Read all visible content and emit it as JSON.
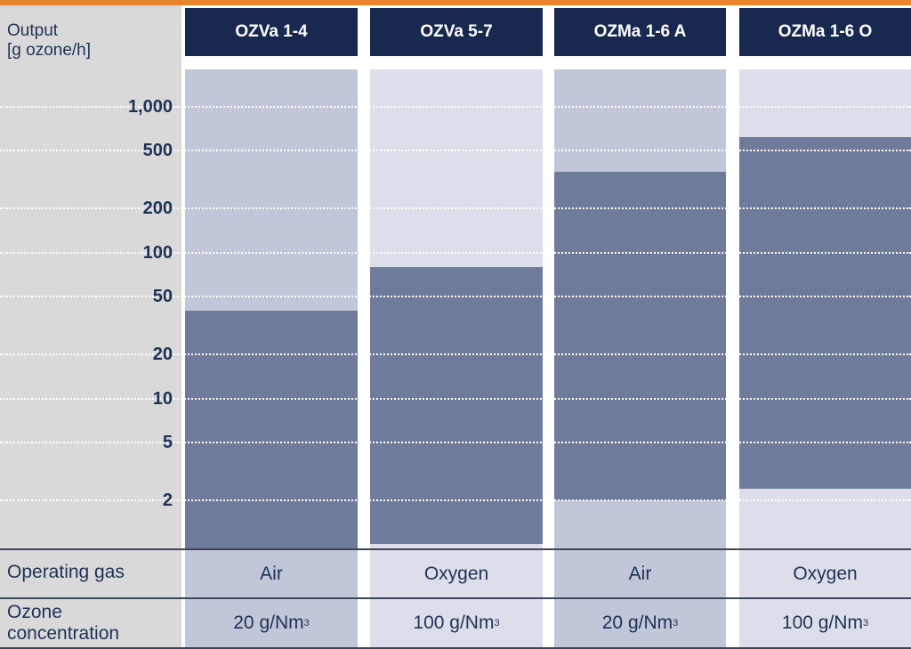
{
  "chart_data": {
    "type": "range-bar",
    "y_axis": {
      "title_line1": "Output",
      "title_line2": "[g ozone/h]",
      "scale": "log",
      "ticks": [
        {
          "value": 1000,
          "label": "1,000"
        },
        {
          "value": 500,
          "label": "500"
        },
        {
          "value": 200,
          "label": "200"
        },
        {
          "value": 100,
          "label": "100"
        },
        {
          "value": 50,
          "label": "50"
        },
        {
          "value": 20,
          "label": "20"
        },
        {
          "value": 10,
          "label": "10"
        },
        {
          "value": 5,
          "label": "5"
        },
        {
          "value": 2,
          "label": "2"
        }
      ],
      "ylim": [
        0.75,
        2000
      ]
    },
    "series": [
      {
        "name": "OZVa 1-4",
        "min": 0.75,
        "max": 40,
        "gas": "Air",
        "conc": "20 g/Nm",
        "conc_sup": "3",
        "shade": "dark"
      },
      {
        "name": "OZVa 5-7",
        "min": 1.0,
        "max": 80,
        "gas": "Oxygen",
        "conc": "100 g/Nm",
        "conc_sup": "3",
        "shade": "light"
      },
      {
        "name": "OZMa 1-6 A",
        "min": 2,
        "max": 360,
        "gas": "Air",
        "conc": "20 g/Nm",
        "conc_sup": "3",
        "shade": "dark"
      },
      {
        "name": "OZMa 1-6 O",
        "min": 2.4,
        "max": 620,
        "gas": "Oxygen",
        "conc": "100 g/Nm",
        "conc_sup": "3",
        "shade": "light"
      }
    ],
    "rows": {
      "gas_label": "Operating gas",
      "conc_label_line1": "Ozone",
      "conc_label_line2": "concentration"
    },
    "colors": {
      "header": "#18284e",
      "range": "#6e7b9b",
      "col_dark": "#c1c6d8",
      "col_light": "#dcdfea",
      "accent": "#e8842c"
    }
  }
}
